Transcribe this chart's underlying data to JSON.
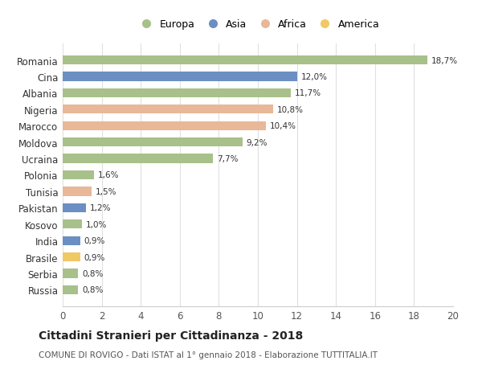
{
  "categories": [
    "Romania",
    "Cina",
    "Albania",
    "Nigeria",
    "Marocco",
    "Moldova",
    "Ucraina",
    "Polonia",
    "Tunisia",
    "Pakistan",
    "Kosovo",
    "India",
    "Brasile",
    "Serbia",
    "Russia"
  ],
  "values": [
    18.7,
    12.0,
    11.7,
    10.8,
    10.4,
    9.2,
    7.7,
    1.6,
    1.5,
    1.2,
    1.0,
    0.9,
    0.9,
    0.8,
    0.8
  ],
  "labels": [
    "18,7%",
    "12,0%",
    "11,7%",
    "10,8%",
    "10,4%",
    "9,2%",
    "7,7%",
    "1,6%",
    "1,5%",
    "1,2%",
    "1,0%",
    "0,9%",
    "0,9%",
    "0,8%",
    "0,8%"
  ],
  "colors": [
    "#a8c08a",
    "#6b8fc2",
    "#a8c08a",
    "#e8b898",
    "#e8b898",
    "#a8c08a",
    "#a8c08a",
    "#a8c08a",
    "#e8b898",
    "#6b8fc2",
    "#a8c08a",
    "#6b8fc2",
    "#f0c866",
    "#a8c08a",
    "#a8c08a"
  ],
  "legend_labels": [
    "Europa",
    "Asia",
    "Africa",
    "America"
  ],
  "legend_colors": [
    "#a8c08a",
    "#6b8fc2",
    "#e8b898",
    "#f0c866"
  ],
  "title": "Cittadini Stranieri per Cittadinanza - 2018",
  "subtitle": "COMUNE DI ROVIGO - Dati ISTAT al 1° gennaio 2018 - Elaborazione TUTTITALIA.IT",
  "xlim": [
    0,
    20
  ],
  "xticks": [
    0,
    2,
    4,
    6,
    8,
    10,
    12,
    14,
    16,
    18,
    20
  ],
  "background_color": "#ffffff",
  "grid_color": "#e0e0e0"
}
